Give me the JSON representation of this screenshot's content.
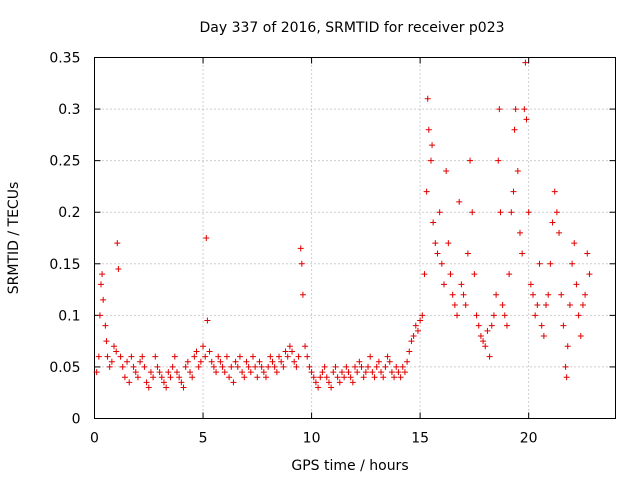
{
  "chart_data": {
    "type": "scatter",
    "title": "Day 337 of 2016, SRMTID for receiver p023",
    "xlabel": "GPS time / hours",
    "ylabel": "SRMTID / TECUs",
    "xlim": [
      0,
      24
    ],
    "ylim": [
      0,
      0.35
    ],
    "x_ticks": [
      0,
      5,
      10,
      15,
      20
    ],
    "x_tick_labels": [
      "0",
      "5",
      "10",
      "15",
      "20"
    ],
    "y_ticks": [
      0,
      0.05,
      0.1,
      0.15,
      0.2,
      0.25,
      0.3,
      0.35
    ],
    "y_tick_labels": [
      "0",
      "0.05",
      "0.1",
      "0.15",
      "0.2",
      "0.25",
      "0.3",
      "0.35"
    ],
    "grid": true,
    "marker": "plus",
    "color": "#e00000",
    "series": [
      {
        "name": "SRMTID",
        "points": [
          [
            0.1,
            0.045
          ],
          [
            0.2,
            0.06
          ],
          [
            0.25,
            0.1
          ],
          [
            0.3,
            0.13
          ],
          [
            0.35,
            0.14
          ],
          [
            0.4,
            0.115
          ],
          [
            0.5,
            0.09
          ],
          [
            0.55,
            0.075
          ],
          [
            0.6,
            0.06
          ],
          [
            0.7,
            0.05
          ],
          [
            0.8,
            0.055
          ],
          [
            0.9,
            0.07
          ],
          [
            1.0,
            0.065
          ],
          [
            1.05,
            0.17
          ],
          [
            1.1,
            0.145
          ],
          [
            1.2,
            0.06
          ],
          [
            1.3,
            0.05
          ],
          [
            1.4,
            0.04
          ],
          [
            1.5,
            0.055
          ],
          [
            1.6,
            0.035
          ],
          [
            1.7,
            0.06
          ],
          [
            1.8,
            0.05
          ],
          [
            1.9,
            0.045
          ],
          [
            2.0,
            0.04
          ],
          [
            2.1,
            0.055
          ],
          [
            2.2,
            0.06
          ],
          [
            2.3,
            0.05
          ],
          [
            2.4,
            0.035
          ],
          [
            2.5,
            0.03
          ],
          [
            2.6,
            0.045
          ],
          [
            2.7,
            0.04
          ],
          [
            2.8,
            0.06
          ],
          [
            2.9,
            0.05
          ],
          [
            3.0,
            0.045
          ],
          [
            3.1,
            0.04
          ],
          [
            3.2,
            0.035
          ],
          [
            3.3,
            0.03
          ],
          [
            3.4,
            0.045
          ],
          [
            3.5,
            0.04
          ],
          [
            3.6,
            0.05
          ],
          [
            3.7,
            0.06
          ],
          [
            3.8,
            0.045
          ],
          [
            3.9,
            0.04
          ],
          [
            4.0,
            0.035
          ],
          [
            4.1,
            0.03
          ],
          [
            4.2,
            0.05
          ],
          [
            4.3,
            0.055
          ],
          [
            4.4,
            0.045
          ],
          [
            4.5,
            0.04
          ],
          [
            4.6,
            0.06
          ],
          [
            4.7,
            0.065
          ],
          [
            4.8,
            0.05
          ],
          [
            4.9,
            0.055
          ],
          [
            5.0,
            0.07
          ],
          [
            5.1,
            0.06
          ],
          [
            5.15,
            0.175
          ],
          [
            5.2,
            0.095
          ],
          [
            5.3,
            0.065
          ],
          [
            5.4,
            0.055
          ],
          [
            5.5,
            0.05
          ],
          [
            5.6,
            0.045
          ],
          [
            5.7,
            0.06
          ],
          [
            5.8,
            0.055
          ],
          [
            5.9,
            0.05
          ],
          [
            6.0,
            0.045
          ],
          [
            6.1,
            0.06
          ],
          [
            6.2,
            0.04
          ],
          [
            6.3,
            0.05
          ],
          [
            6.4,
            0.035
          ],
          [
            6.5,
            0.055
          ],
          [
            6.6,
            0.05
          ],
          [
            6.7,
            0.06
          ],
          [
            6.8,
            0.045
          ],
          [
            6.9,
            0.04
          ],
          [
            7.0,
            0.055
          ],
          [
            7.1,
            0.05
          ],
          [
            7.2,
            0.045
          ],
          [
            7.3,
            0.06
          ],
          [
            7.4,
            0.05
          ],
          [
            7.5,
            0.04
          ],
          [
            7.6,
            0.055
          ],
          [
            7.7,
            0.05
          ],
          [
            7.8,
            0.045
          ],
          [
            7.9,
            0.04
          ],
          [
            8.0,
            0.05
          ],
          [
            8.1,
            0.06
          ],
          [
            8.2,
            0.055
          ],
          [
            8.3,
            0.05
          ],
          [
            8.4,
            0.045
          ],
          [
            8.5,
            0.06
          ],
          [
            8.6,
            0.055
          ],
          [
            8.7,
            0.05
          ],
          [
            8.8,
            0.065
          ],
          [
            8.9,
            0.06
          ],
          [
            9.0,
            0.07
          ],
          [
            9.1,
            0.065
          ],
          [
            9.2,
            0.055
          ],
          [
            9.3,
            0.05
          ],
          [
            9.4,
            0.06
          ],
          [
            9.5,
            0.165
          ],
          [
            9.55,
            0.15
          ],
          [
            9.6,
            0.12
          ],
          [
            9.7,
            0.07
          ],
          [
            9.8,
            0.06
          ],
          [
            9.9,
            0.05
          ],
          [
            10.0,
            0.045
          ],
          [
            10.1,
            0.04
          ],
          [
            10.2,
            0.035
          ],
          [
            10.3,
            0.03
          ],
          [
            10.4,
            0.04
          ],
          [
            10.5,
            0.045
          ],
          [
            10.6,
            0.05
          ],
          [
            10.7,
            0.04
          ],
          [
            10.8,
            0.035
          ],
          [
            10.9,
            0.03
          ],
          [
            11.0,
            0.045
          ],
          [
            11.1,
            0.05
          ],
          [
            11.2,
            0.04
          ],
          [
            11.3,
            0.035
          ],
          [
            11.4,
            0.045
          ],
          [
            11.5,
            0.04
          ],
          [
            11.6,
            0.05
          ],
          [
            11.7,
            0.045
          ],
          [
            11.8,
            0.04
          ],
          [
            11.9,
            0.035
          ],
          [
            12.0,
            0.05
          ],
          [
            12.1,
            0.045
          ],
          [
            12.2,
            0.055
          ],
          [
            12.3,
            0.05
          ],
          [
            12.4,
            0.04
          ],
          [
            12.5,
            0.045
          ],
          [
            12.6,
            0.05
          ],
          [
            12.7,
            0.06
          ],
          [
            12.8,
            0.045
          ],
          [
            12.9,
            0.04
          ],
          [
            13.0,
            0.05
          ],
          [
            13.1,
            0.055
          ],
          [
            13.2,
            0.045
          ],
          [
            13.3,
            0.04
          ],
          [
            13.4,
            0.05
          ],
          [
            13.5,
            0.06
          ],
          [
            13.6,
            0.055
          ],
          [
            13.7,
            0.045
          ],
          [
            13.8,
            0.04
          ],
          [
            13.9,
            0.05
          ],
          [
            14.0,
            0.045
          ],
          [
            14.1,
            0.04
          ],
          [
            14.2,
            0.05
          ],
          [
            14.3,
            0.045
          ],
          [
            14.4,
            0.055
          ],
          [
            14.5,
            0.065
          ],
          [
            14.6,
            0.075
          ],
          [
            14.7,
            0.08
          ],
          [
            14.8,
            0.09
          ],
          [
            14.9,
            0.085
          ],
          [
            15.0,
            0.095
          ],
          [
            15.1,
            0.1
          ],
          [
            15.2,
            0.14
          ],
          [
            15.3,
            0.22
          ],
          [
            15.35,
            0.31
          ],
          [
            15.4,
            0.28
          ],
          [
            15.5,
            0.25
          ],
          [
            15.55,
            0.265
          ],
          [
            15.6,
            0.19
          ],
          [
            15.7,
            0.17
          ],
          [
            15.8,
            0.16
          ],
          [
            15.9,
            0.2
          ],
          [
            16.0,
            0.15
          ],
          [
            16.1,
            0.13
          ],
          [
            16.2,
            0.24
          ],
          [
            16.3,
            0.17
          ],
          [
            16.4,
            0.14
          ],
          [
            16.5,
            0.12
          ],
          [
            16.6,
            0.11
          ],
          [
            16.7,
            0.1
          ],
          [
            16.8,
            0.21
          ],
          [
            16.9,
            0.13
          ],
          [
            17.0,
            0.12
          ],
          [
            17.1,
            0.11
          ],
          [
            17.2,
            0.16
          ],
          [
            17.3,
            0.25
          ],
          [
            17.4,
            0.2
          ],
          [
            17.5,
            0.14
          ],
          [
            17.6,
            0.1
          ],
          [
            17.7,
            0.09
          ],
          [
            17.8,
            0.08
          ],
          [
            17.9,
            0.075
          ],
          [
            18.0,
            0.07
          ],
          [
            18.1,
            0.085
          ],
          [
            18.2,
            0.06
          ],
          [
            18.3,
            0.09
          ],
          [
            18.4,
            0.1
          ],
          [
            18.5,
            0.12
          ],
          [
            18.6,
            0.25
          ],
          [
            18.65,
            0.3
          ],
          [
            18.7,
            0.2
          ],
          [
            18.8,
            0.11
          ],
          [
            18.9,
            0.1
          ],
          [
            19.0,
            0.09
          ],
          [
            19.1,
            0.14
          ],
          [
            19.2,
            0.2
          ],
          [
            19.3,
            0.22
          ],
          [
            19.35,
            0.28
          ],
          [
            19.4,
            0.3
          ],
          [
            19.5,
            0.24
          ],
          [
            19.6,
            0.18
          ],
          [
            19.7,
            0.16
          ],
          [
            19.8,
            0.3
          ],
          [
            19.85,
            0.345
          ],
          [
            19.9,
            0.29
          ],
          [
            20.0,
            0.2
          ],
          [
            20.1,
            0.13
          ],
          [
            20.2,
            0.12
          ],
          [
            20.3,
            0.1
          ],
          [
            20.4,
            0.11
          ],
          [
            20.5,
            0.15
          ],
          [
            20.6,
            0.09
          ],
          [
            20.7,
            0.08
          ],
          [
            20.8,
            0.11
          ],
          [
            20.9,
            0.12
          ],
          [
            21.0,
            0.15
          ],
          [
            21.1,
            0.19
          ],
          [
            21.2,
            0.22
          ],
          [
            21.3,
            0.2
          ],
          [
            21.4,
            0.18
          ],
          [
            21.5,
            0.12
          ],
          [
            21.6,
            0.09
          ],
          [
            21.7,
            0.05
          ],
          [
            21.75,
            0.04
          ],
          [
            21.8,
            0.07
          ],
          [
            21.9,
            0.11
          ],
          [
            22.0,
            0.15
          ],
          [
            22.1,
            0.17
          ],
          [
            22.2,
            0.13
          ],
          [
            22.3,
            0.1
          ],
          [
            22.4,
            0.08
          ],
          [
            22.5,
            0.11
          ],
          [
            22.6,
            0.12
          ],
          [
            22.7,
            0.16
          ],
          [
            22.8,
            0.14
          ]
        ]
      }
    ]
  }
}
